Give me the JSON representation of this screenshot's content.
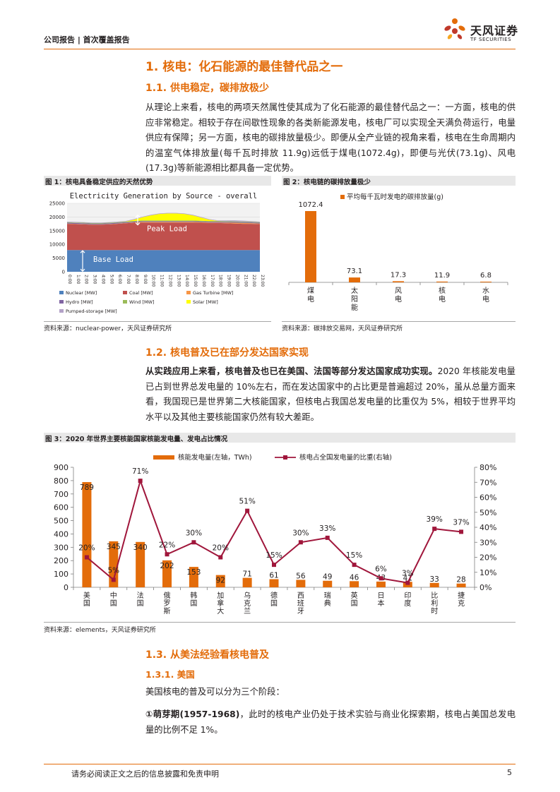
{
  "header": {
    "label": "公司报告 | 首次覆盖报告"
  },
  "logo": {
    "name": "天风证券",
    "sub": "TF SECURITIES"
  },
  "section1": {
    "title": "1. 核电：化石能源的最佳替代品之一",
    "sub1_title": "1.1. 供电稳定，碳排放极少",
    "sub1_paragraph": "从理论上来看，核电的两项天然属性使其成为了化石能源的最佳替代品之一：一方面，核电的供应非常稳定。相较于存在间歇性现象的各类新能源发电，核电厂可以实现全天满负荷运行，电量供应有保障；另一方面，核电的碳排放量极少。即便从全产业链的视角来看，核电在生命周期内的温室气体排放量(每千瓦时排放 11.9g)远低于煤电(1072.4g)，即便与光伏(73.1g)、风电(17.3g)等新能源相比都具备一定优势。"
  },
  "fig1": {
    "title": "图 1：核电具备稳定供应的天然优势",
    "source": "资料来源：nuclear-power，天风证券研究所"
  },
  "fig2": {
    "title": "图 2：核电链的碳排放量极少",
    "source": "资料来源：碳排放交易网，天风证券研究所"
  },
  "section2": {
    "title": "1.2. 核电普及已在部分发达国家实现",
    "para_bold": "从实践应用上来看，核电普及也已在美国、法国等部分发达国家成功实现。",
    "para_rest": "2020 年核能发电量已占到世界总发电量的 10%左右，而在发达国家中的占比更是普遍超过 20%，虽从总量方面来看，我国现已是世界第二大核能国家，但核电占我国总发电量的比重仅为 5%，相较于世界平均水平以及其他主要核能国家仍然有较大差距。"
  },
  "fig3": {
    "title": "图 3：2020 年世界主要核能国家核能发电量、发电占比情况",
    "source": "资料来源：elements，天风证券研究所"
  },
  "section3": {
    "title": "1.3. 从美法经验看核电普及",
    "sub_title": "1.3.1. 美国",
    "para1": "美国核电的普及可以分为三个阶段：",
    "para2_bold": "①萌芽期(1957-1968)",
    "para2_rest": "，此时的核电产业仍处于技术实验与商业化探索期，核电占美国总发电量的比例不足 1%。"
  },
  "footer": {
    "text": "请务必阅读正文之后的信息披露和免责申明",
    "page": "5"
  },
  "chart_data": [
    {
      "type": "area",
      "title": "Electricity Generation by Source - overall",
      "x": [
        "0:00",
        "1:00",
        "2:00",
        "3:00",
        "4:00",
        "5:00",
        "6:00",
        "7:00",
        "8:00",
        "9:00",
        "10:00",
        "11:00",
        "12:00",
        "13:00",
        "14:00",
        "15:00",
        "16:00",
        "17:00",
        "18:00",
        "19:00",
        "20:00",
        "21:00",
        "22:00",
        "23:00"
      ],
      "ylim": [
        0,
        25000
      ],
      "yticks": [
        0,
        5000,
        10000,
        15000,
        20000,
        25000
      ],
      "series": [
        {
          "name": "Nuclear [MW]",
          "color": "#4f81bd",
          "values": [
            7900,
            7900,
            7900,
            7900,
            7900,
            7900,
            7900,
            7900,
            7900,
            7900,
            7900,
            7900,
            7900,
            7900,
            7900,
            7900,
            7900,
            7900,
            7900,
            7900,
            7900,
            7900,
            7900,
            7900
          ]
        },
        {
          "name": "Coal [MW]",
          "color": "#c0504d",
          "values": [
            9600,
            9500,
            9400,
            9300,
            9300,
            9400,
            9600,
            9800,
            10000,
            10100,
            10100,
            10100,
            10100,
            10100,
            10100,
            10100,
            10000,
            9900,
            9900,
            9800,
            9700,
            9600,
            9600,
            9500
          ]
        },
        {
          "name": "Gas Turbine [MW]",
          "color": "#f79646",
          "values": [
            100,
            100,
            100,
            100,
            100,
            100,
            100,
            100,
            150,
            200,
            200,
            200,
            200,
            200,
            200,
            200,
            200,
            200,
            200,
            250,
            300,
            300,
            250,
            200
          ]
        },
        {
          "name": "Hydro [MW]",
          "color": "#8064a2",
          "values": [
            300,
            300,
            300,
            300,
            300,
            300,
            300,
            300,
            300,
            300,
            300,
            300,
            300,
            300,
            300,
            300,
            300,
            300,
            300,
            300,
            300,
            300,
            300,
            300
          ]
        },
        {
          "name": "Wind [MW]",
          "color": "#9bbb59",
          "values": [
            200,
            200,
            200,
            200,
            200,
            200,
            200,
            200,
            200,
            200,
            200,
            200,
            200,
            200,
            200,
            200,
            200,
            200,
            200,
            200,
            200,
            200,
            200,
            200
          ]
        },
        {
          "name": "Solar [MW]",
          "color": "#ffff00",
          "values": [
            0,
            0,
            0,
            0,
            0,
            0,
            0,
            50,
            500,
            1200,
            1900,
            2400,
            2600,
            2600,
            2400,
            1900,
            1200,
            500,
            50,
            0,
            0,
            0,
            0,
            0
          ]
        },
        {
          "name": "Pumped-storage [MW]",
          "color": "#b3a2c7",
          "values": [
            200,
            200,
            200,
            200,
            200,
            200,
            200,
            200,
            200,
            200,
            200,
            200,
            200,
            200,
            200,
            200,
            200,
            200,
            200,
            300,
            400,
            350,
            250,
            200
          ]
        }
      ],
      "annotations": [
        "Peak Load",
        "Base Load"
      ],
      "legend": "bottom"
    },
    {
      "type": "bar",
      "categories": [
        "煤电",
        "太阳能",
        "风电",
        "核电",
        "水电"
      ],
      "series": [
        {
          "name": "平均每千瓦时发电的碳排放量(g)",
          "values": [
            1072.4,
            73.1,
            17.3,
            11.9,
            6.8
          ]
        }
      ],
      "ylim": [
        0,
        1500
      ],
      "color": "#e36c0a",
      "legend": "top-left"
    },
    {
      "type": "bar",
      "categories": [
        "美国",
        "中国",
        "法国",
        "俄罗斯",
        "韩国",
        "加拿大",
        "乌克兰",
        "德国",
        "西班牙",
        "瑞典",
        "英国",
        "日本",
        "印度",
        "比利时",
        "捷克"
      ],
      "series": [
        {
          "name": "核能发电量(左轴，TWh)",
          "type": "bar",
          "color": "#e36c0a",
          "values": [
            789,
            345,
            340,
            202,
            153,
            92,
            71,
            61,
            56,
            49,
            46,
            43,
            41,
            33,
            28
          ]
        },
        {
          "name": "核电占全国发电量的比重(右轴)",
          "type": "line",
          "color": "#a0163b",
          "values": [
            20,
            5,
            71,
            22,
            30,
            20,
            51,
            15,
            30,
            33,
            15,
            6,
            3,
            39,
            37
          ]
        }
      ],
      "ylim_left": [
        0,
        900
      ],
      "yticks_left": [
        0,
        100,
        200,
        300,
        400,
        500,
        600,
        700,
        800,
        900
      ],
      "ylim_right": [
        0,
        80
      ],
      "yticks_right": [
        "0%",
        "10%",
        "20%",
        "30%",
        "40%",
        "50%",
        "60%",
        "70%",
        "80%"
      ],
      "legend": "top"
    }
  ]
}
